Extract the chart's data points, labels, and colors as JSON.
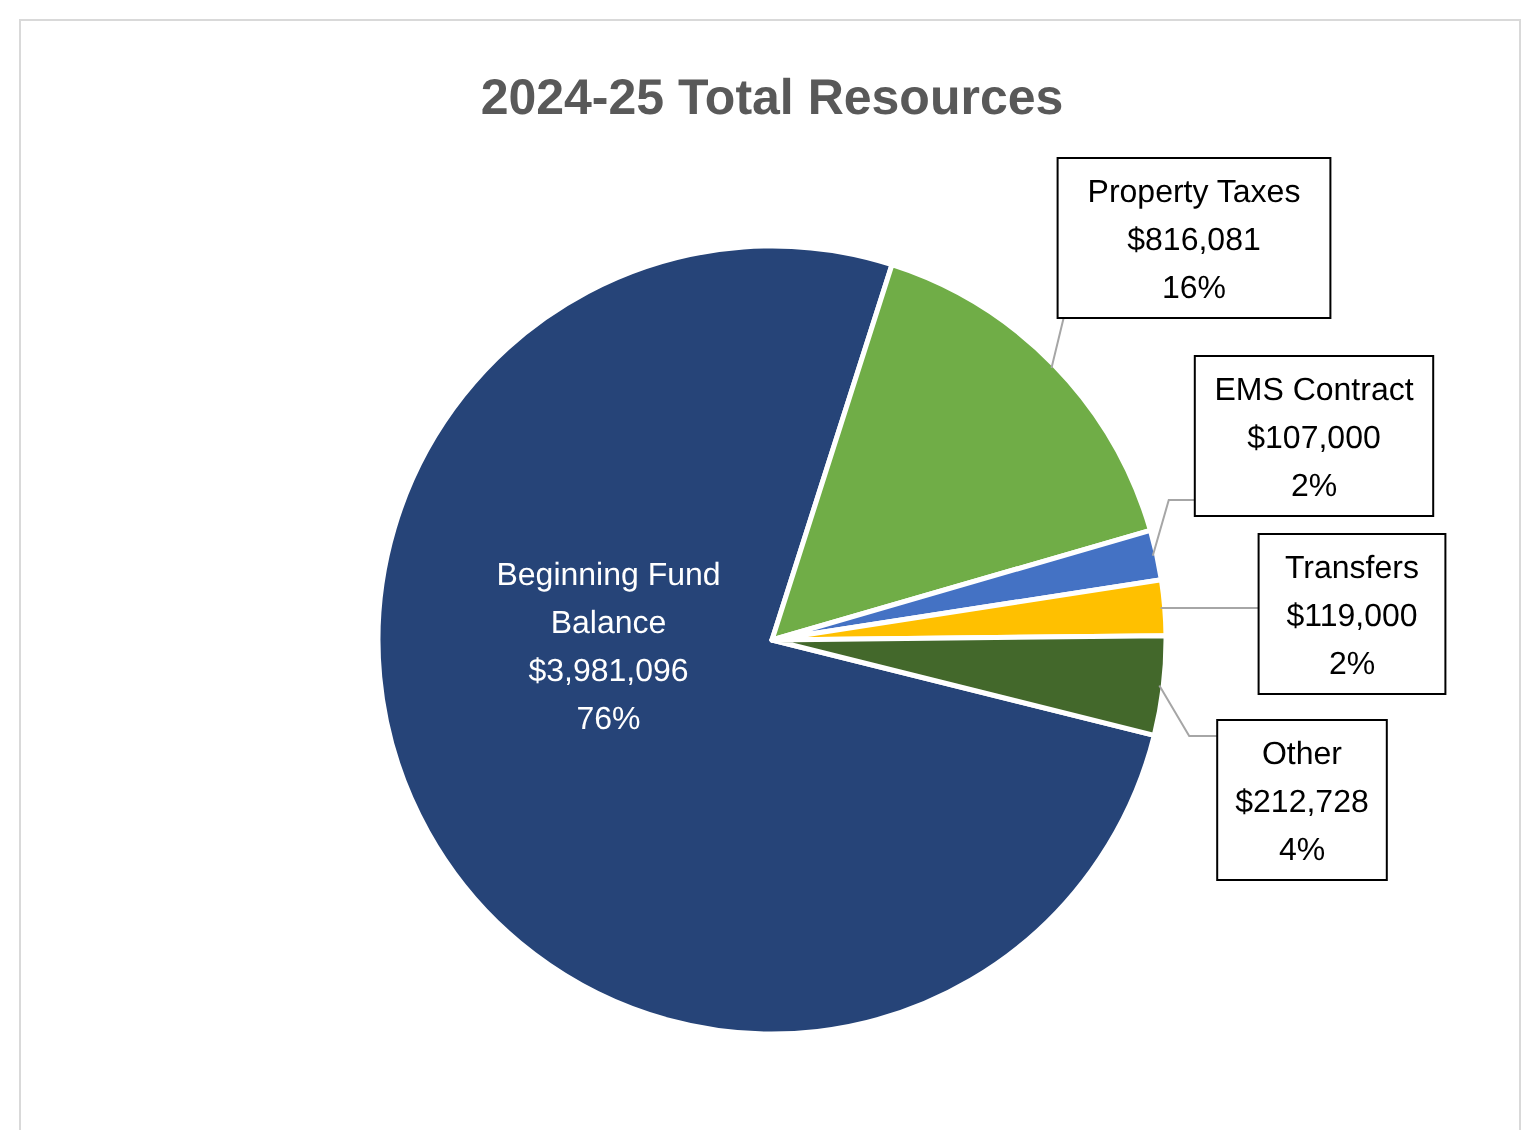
{
  "chart_data": {
    "type": "pie",
    "title": "2024-25 Total Resources",
    "categories": [
      "Beginning Fund Balance",
      "Property Taxes",
      "EMS Contract",
      "Transfers",
      "Other"
    ],
    "values": [
      3981096,
      816081,
      107000,
      119000,
      212728
    ],
    "colors": [
      "#264478",
      "#70ad47",
      "#4472c4",
      "#ffc000",
      "#43682b"
    ],
    "value_labels": [
      "$3,981,096\n76%",
      "$816,081\n16%",
      "$107,000\n2%",
      "$119,000\n2%",
      "$212,728\n4%"
    ]
  }
}
